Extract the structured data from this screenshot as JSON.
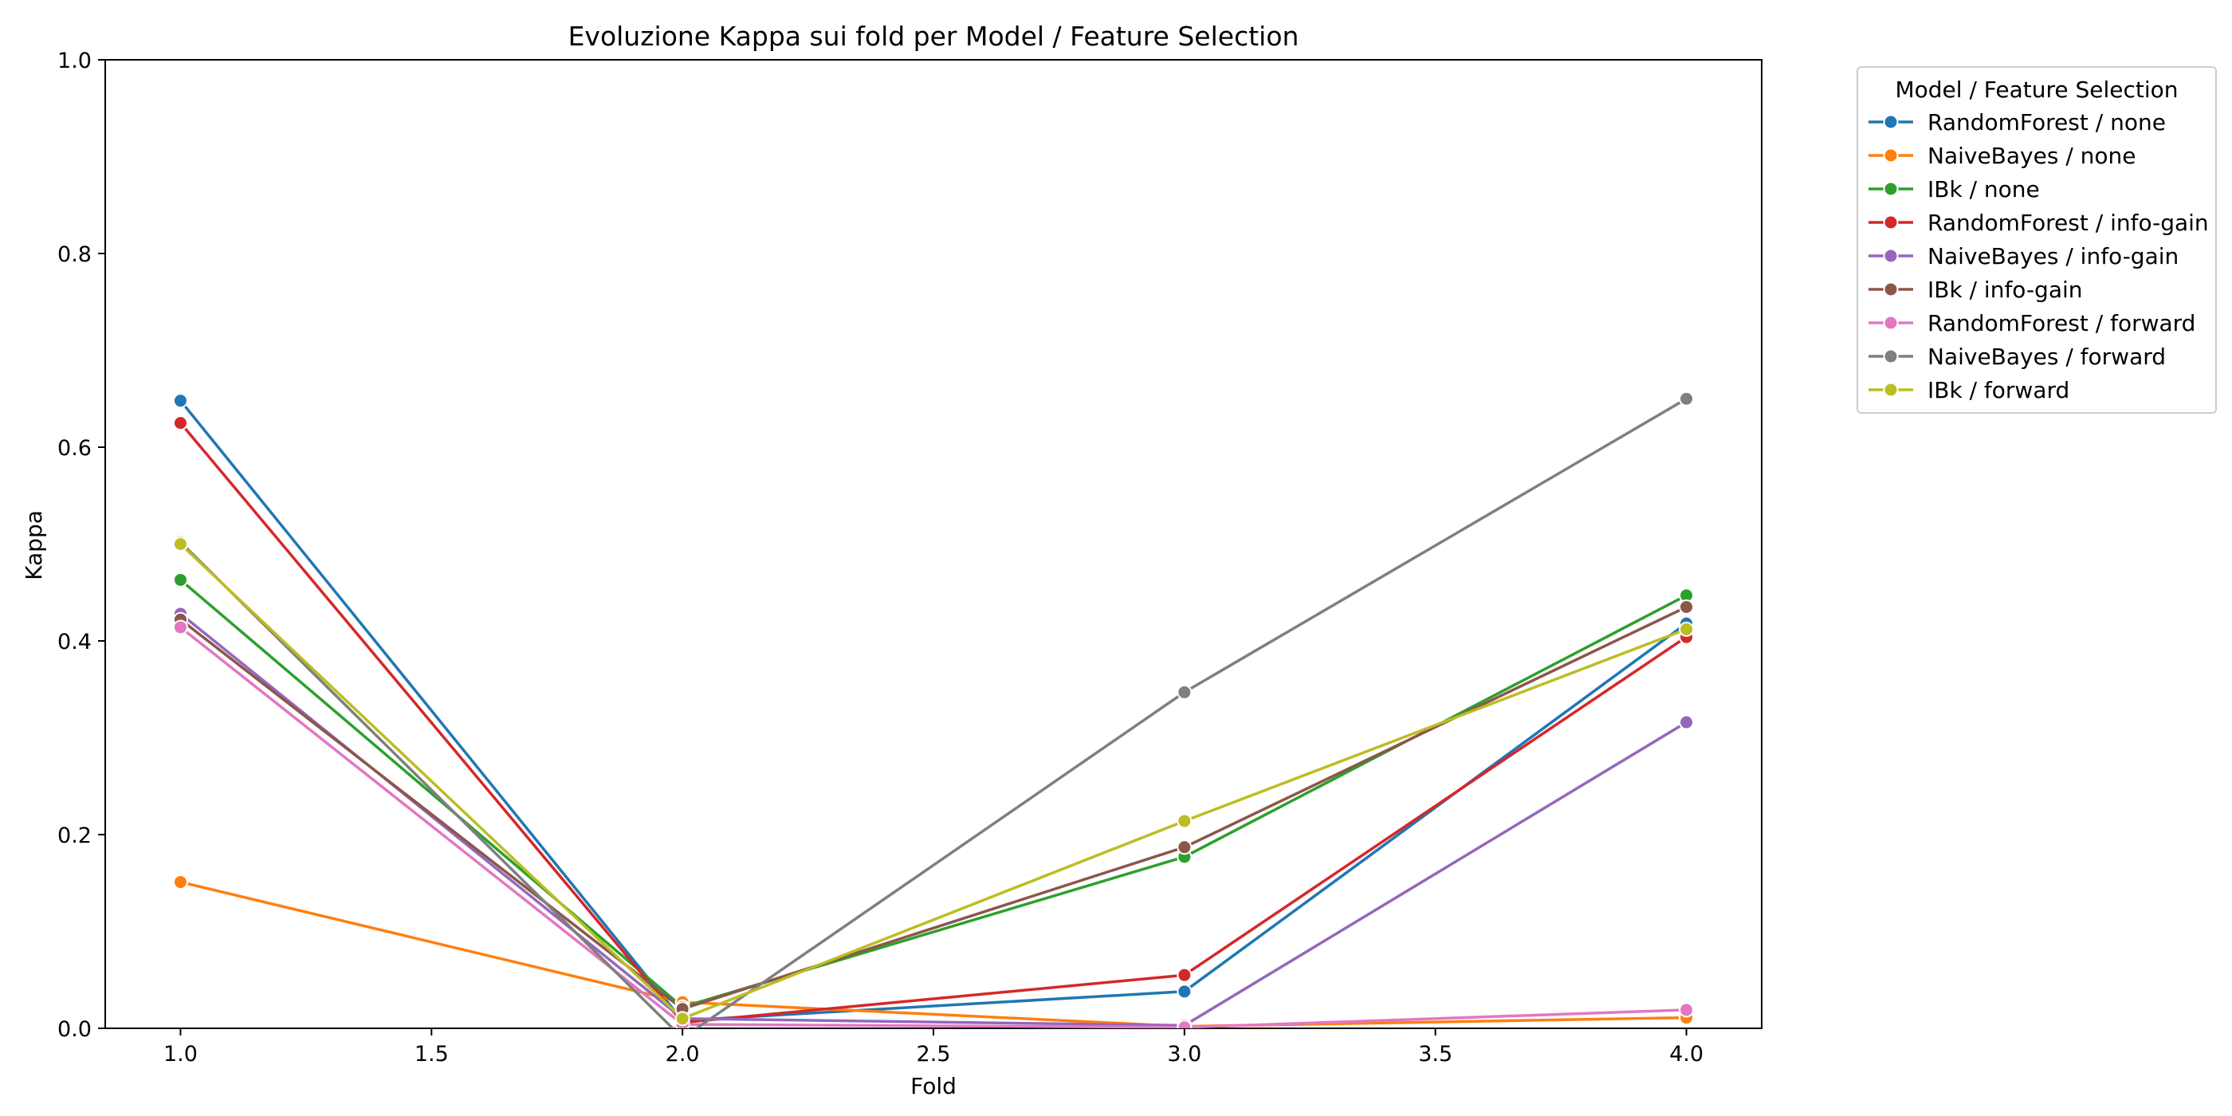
{
  "chart_data": {
    "type": "line",
    "title": "Evoluzione Kappa sui fold per Model / Feature Selection",
    "xlabel": "Fold",
    "ylabel": "Kappa",
    "xlim": [
      0.85,
      4.15
    ],
    "ylim": [
      0.0,
      1.0
    ],
    "x_ticks": [
      1.0,
      1.5,
      2.0,
      2.5,
      3.0,
      3.5,
      4.0
    ],
    "x_tick_labels": [
      "1.0",
      "1.5",
      "2.0",
      "2.5",
      "3.0",
      "3.5",
      "4.0"
    ],
    "y_ticks": [
      0.0,
      0.2,
      0.4,
      0.6,
      0.8,
      1.0
    ],
    "y_tick_labels": [
      "0.0",
      "0.2",
      "0.4",
      "0.6",
      "0.8",
      "1.0"
    ],
    "grid": false,
    "legend_title": "Model / Feature Selection",
    "legend_position": "outside-top-right",
    "x": [
      1,
      2,
      3,
      4
    ],
    "series": [
      {
        "name": "RandomForest / none",
        "color": "#1f77b4",
        "values": [
          0.648,
          0.008,
          0.038,
          0.418
        ]
      },
      {
        "name": "NaiveBayes / none",
        "color": "#ff7f0e",
        "values": [
          0.151,
          0.027,
          0.002,
          0.011
        ]
      },
      {
        "name": "IBk / none",
        "color": "#2ca02c",
        "values": [
          0.463,
          0.022,
          0.177,
          0.447
        ]
      },
      {
        "name": "RandomForest / info-gain",
        "color": "#d62728",
        "values": [
          0.625,
          0.006,
          0.055,
          0.404
        ]
      },
      {
        "name": "NaiveBayes / info-gain",
        "color": "#9467bd",
        "values": [
          0.428,
          0.01,
          0.003,
          0.316
        ]
      },
      {
        "name": "IBk / info-gain",
        "color": "#8c564b",
        "values": [
          0.422,
          0.02,
          0.187,
          0.435
        ]
      },
      {
        "name": "RandomForest / forward",
        "color": "#e377c2",
        "values": [
          0.414,
          0.004,
          0.001,
          0.019
        ]
      },
      {
        "name": "NaiveBayes / forward",
        "color": "#7f7f7f",
        "values": [
          0.502,
          -0.01,
          0.347,
          0.65
        ]
      },
      {
        "name": "IBk / forward",
        "color": "#bcbd22",
        "values": [
          0.5,
          0.01,
          0.214,
          0.412
        ]
      }
    ]
  }
}
